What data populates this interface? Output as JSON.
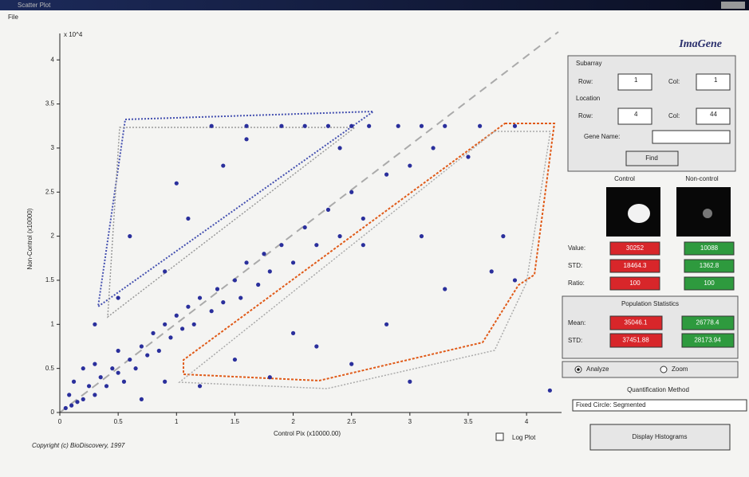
{
  "window": {
    "title": "Scatter Plot",
    "menu": [
      "File"
    ]
  },
  "chart_data": {
    "type": "scatter",
    "x_label": "Control Pix (x10000.00)",
    "y_label": "Non-Control (x10000)",
    "axis_multiplier": "x 10^4",
    "color": "#2a2f9c",
    "xlim": [
      0,
      4.3
    ],
    "ylim": [
      0,
      4.3
    ],
    "xticks": [
      0,
      0.5,
      1,
      1.5,
      2,
      2.5,
      3,
      3.5,
      4
    ],
    "yticks": [
      0,
      0.5,
      1,
      1.5,
      2,
      2.5,
      3,
      3.5,
      4
    ],
    "x": [
      0.05,
      0.1,
      0.15,
      0.08,
      0.2,
      0.25,
      0.3,
      0.12,
      0.35,
      0.4,
      0.45,
      0.5,
      0.2,
      0.3,
      0.55,
      0.6,
      0.65,
      0.7,
      0.75,
      0.5,
      0.8,
      0.85,
      0.9,
      0.95,
      1.0,
      1.05,
      1.1,
      1.15,
      1.2,
      1.3,
      1.35,
      1.4,
      1.5,
      1.55,
      1.6,
      1.7,
      1.75,
      1.8,
      1.9,
      2.0,
      2.1,
      2.2,
      2.3,
      2.4,
      2.5,
      2.6,
      2.8,
      3.0,
      3.2,
      3.5,
      0.5,
      0.6,
      1.0,
      1.1,
      1.4,
      1.6,
      2.4,
      0.9,
      0.3,
      1.3,
      1.6,
      1.9,
      2.1,
      2.3,
      2.5,
      2.65,
      2.9,
      3.1,
      3.3,
      3.6,
      3.9,
      1.5,
      1.8,
      2.0,
      2.2,
      2.5,
      2.8,
      3.0,
      3.3,
      3.7,
      3.8,
      3.9,
      2.6,
      3.1,
      4.2,
      1.2,
      0.7,
      0.9
    ],
    "values": [
      0.05,
      0.08,
      0.12,
      0.2,
      0.15,
      0.3,
      0.2,
      0.35,
      0.4,
      0.3,
      0.5,
      0.45,
      0.5,
      0.55,
      0.35,
      0.6,
      0.5,
      0.75,
      0.65,
      0.7,
      0.9,
      0.7,
      1.0,
      0.85,
      1.1,
      0.95,
      1.2,
      1.0,
      1.3,
      1.15,
      1.4,
      1.25,
      1.5,
      1.3,
      1.7,
      1.45,
      1.8,
      1.6,
      1.9,
      1.7,
      2.1,
      1.9,
      2.3,
      2.0,
      2.5,
      2.2,
      2.7,
      2.8,
      3.0,
      2.9,
      1.3,
      2.0,
      2.6,
      2.2,
      2.8,
      3.1,
      3.0,
      1.6,
      1.0,
      3.25,
      3.25,
      3.25,
      3.25,
      3.25,
      3.25,
      3.25,
      3.25,
      3.25,
      3.25,
      3.25,
      3.25,
      0.6,
      0.4,
      0.9,
      0.75,
      0.55,
      1.0,
      0.35,
      1.4,
      1.6,
      2.0,
      1.5,
      1.9,
      2.0,
      0.25,
      0.3,
      0.15,
      0.35
    ]
  },
  "footer": {
    "copyright": "Copyright (c) BioDiscovery, 1997",
    "log_plot": "Log Plot"
  },
  "panel": {
    "brand": "ImaGene",
    "subarray": "Subarray",
    "row": "Row:",
    "col": "Col:",
    "row_value": "1",
    "col_value": "1",
    "location": "Location",
    "row2": "Row:",
    "col2": "Col:",
    "row2_value": "4",
    "col2_value": "44",
    "gene_name": "Gene Name:",
    "find": "Find",
    "control": "Control",
    "noncontrol": "Non-control",
    "value": "Value:",
    "std": "STD:",
    "ratio": "Ratio:",
    "control_values": [
      "30252",
      "18464.3",
      "100"
    ],
    "noncontrol_values": [
      "10088",
      "1362.8",
      "100"
    ],
    "population": "Population Statistics",
    "mean": "Mean:",
    "pop_std": "STD:",
    "pop_control": [
      "35046.1",
      "37451.88"
    ],
    "pop_noncontrol": [
      "26778.4",
      "28173.94"
    ],
    "analyze": "Analyze",
    "zoom": "Zoom",
    "quant_method": "Quantification Method",
    "quant_value": "Fixed Circle: Segmented",
    "histograms": "Display Histograms"
  }
}
